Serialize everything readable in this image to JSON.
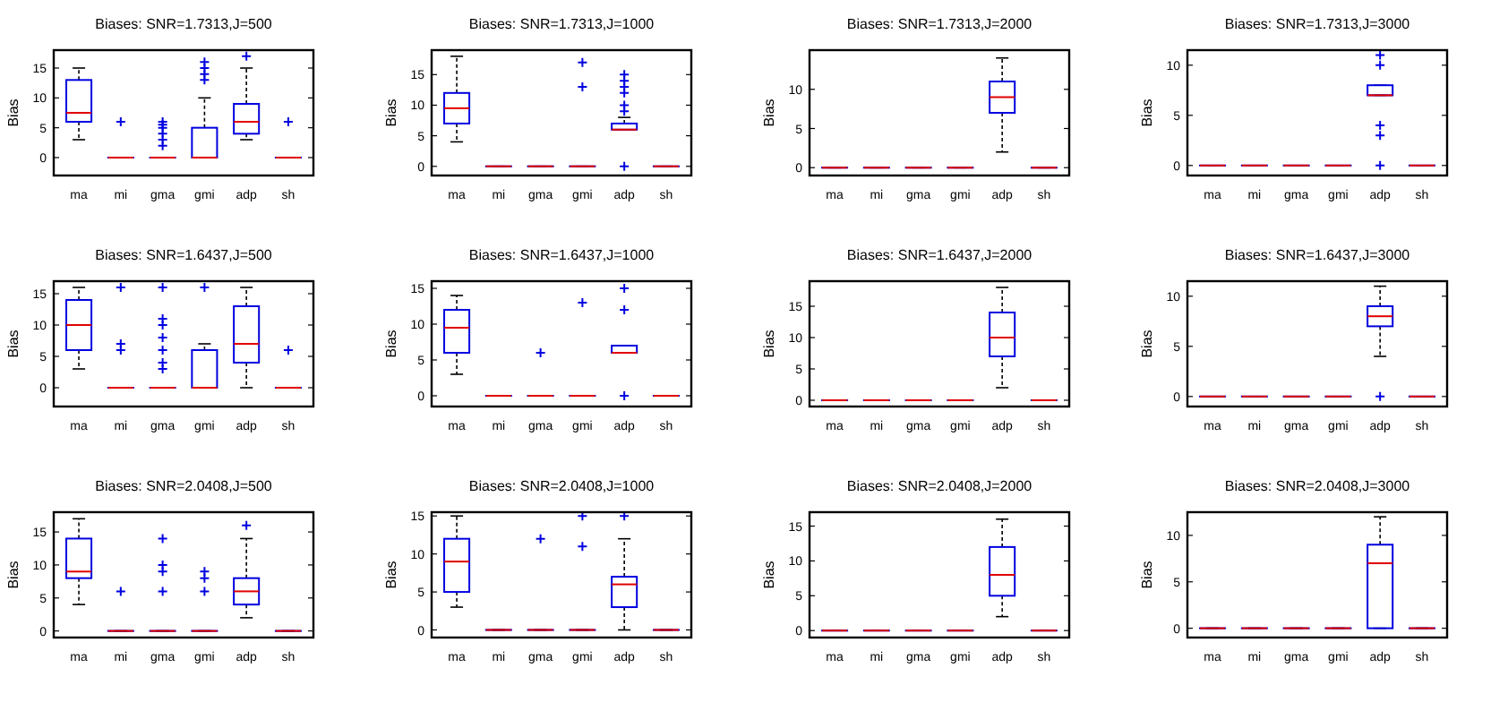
{
  "chart_data": [
    {
      "type": "box",
      "title": "Biases: SNR=1.7313,J=500",
      "ylabel": "Bias",
      "categories": [
        "ma",
        "mi",
        "gma",
        "gmi",
        "adp",
        "sh"
      ],
      "ylim": [
        -3,
        18
      ],
      "yticks": [
        0,
        5,
        10,
        15
      ],
      "boxes": [
        {
          "low": 3,
          "q1": 6,
          "median": 7.5,
          "q3": 13,
          "high": 15
        },
        {
          "low": 0,
          "q1": 0,
          "median": 0,
          "q3": 0,
          "high": 0,
          "outliers": [
            6
          ]
        },
        {
          "low": 0,
          "q1": 0,
          "median": 0,
          "q3": 0,
          "high": 0,
          "outliers": [
            2,
            3,
            4,
            5,
            5.5,
            6
          ]
        },
        {
          "low": 0,
          "q1": 0,
          "median": 0,
          "q3": 5,
          "high": 10,
          "outliers": [
            13,
            14,
            15,
            16
          ]
        },
        {
          "low": 3,
          "q1": 4,
          "median": 6,
          "q3": 9,
          "high": 15,
          "outliers": [
            17
          ]
        },
        {
          "low": 0,
          "q1": 0,
          "median": 0,
          "q3": 0,
          "high": 0,
          "outliers": [
            6
          ]
        }
      ]
    },
    {
      "type": "box",
      "title": "Biases: SNR=1.7313,J=1000",
      "ylabel": "Bias",
      "categories": [
        "ma",
        "mi",
        "gma",
        "gmi",
        "adp",
        "sh"
      ],
      "ylim": [
        -1.5,
        19
      ],
      "yticks": [
        0,
        5,
        10,
        15
      ],
      "boxes": [
        {
          "low": 4,
          "q1": 7,
          "median": 9.5,
          "q3": 12,
          "high": 18
        },
        {
          "low": 0,
          "q1": 0,
          "median": 0,
          "q3": 0,
          "high": 0
        },
        {
          "low": 0,
          "q1": 0,
          "median": 0,
          "q3": 0,
          "high": 0
        },
        {
          "low": 0,
          "q1": 0,
          "median": 0,
          "q3": 0,
          "high": 0,
          "outliers": [
            13,
            17
          ]
        },
        {
          "low": 6,
          "q1": 6,
          "median": 6,
          "q3": 7,
          "high": 8,
          "outliers": [
            0,
            9,
            10,
            12,
            13,
            14,
            15
          ]
        },
        {
          "low": 0,
          "q1": 0,
          "median": 0,
          "q3": 0,
          "high": 0
        }
      ]
    },
    {
      "type": "box",
      "title": "Biases: SNR=1.7313,J=2000",
      "ylabel": "Bias",
      "categories": [
        "ma",
        "mi",
        "gma",
        "gmi",
        "adp",
        "sh"
      ],
      "ylim": [
        -1,
        15
      ],
      "yticks": [
        0,
        5,
        10
      ],
      "boxes": [
        {
          "low": 0,
          "q1": 0,
          "median": 0,
          "q3": 0,
          "high": 0
        },
        {
          "low": 0,
          "q1": 0,
          "median": 0,
          "q3": 0,
          "high": 0
        },
        {
          "low": 0,
          "q1": 0,
          "median": 0,
          "q3": 0,
          "high": 0
        },
        {
          "low": 0,
          "q1": 0,
          "median": 0,
          "q3": 0,
          "high": 0
        },
        {
          "low": 2,
          "q1": 7,
          "median": 9,
          "q3": 11,
          "high": 14
        },
        {
          "low": 0,
          "q1": 0,
          "median": 0,
          "q3": 0,
          "high": 0
        }
      ]
    },
    {
      "type": "box",
      "title": "Biases: SNR=1.7313,J=3000",
      "ylabel": "Bias",
      "categories": [
        "ma",
        "mi",
        "gma",
        "gmi",
        "adp",
        "sh"
      ],
      "ylim": [
        -1,
        11.5
      ],
      "yticks": [
        0,
        5,
        10
      ],
      "boxes": [
        {
          "low": 0,
          "q1": 0,
          "median": 0,
          "q3": 0,
          "high": 0
        },
        {
          "low": 0,
          "q1": 0,
          "median": 0,
          "q3": 0,
          "high": 0
        },
        {
          "low": 0,
          "q1": 0,
          "median": 0,
          "q3": 0,
          "high": 0
        },
        {
          "low": 0,
          "q1": 0,
          "median": 0,
          "q3": 0,
          "high": 0
        },
        {
          "low": 7,
          "q1": 7,
          "median": 7,
          "q3": 8,
          "high": 8,
          "outliers": [
            0,
            3,
            4,
            10,
            11
          ]
        },
        {
          "low": 0,
          "q1": 0,
          "median": 0,
          "q3": 0,
          "high": 0
        }
      ]
    },
    {
      "type": "box",
      "title": "Biases: SNR=1.6437,J=500",
      "ylabel": "Bias",
      "categories": [
        "ma",
        "mi",
        "gma",
        "gmi",
        "adp",
        "sh"
      ],
      "ylim": [
        -3,
        17
      ],
      "yticks": [
        0,
        5,
        10,
        15
      ],
      "boxes": [
        {
          "low": 3,
          "q1": 6,
          "median": 10,
          "q3": 14,
          "high": 16
        },
        {
          "low": 0,
          "q1": 0,
          "median": 0,
          "q3": 0,
          "high": 0,
          "outliers": [
            6,
            7,
            16
          ]
        },
        {
          "low": 0,
          "q1": 0,
          "median": 0,
          "q3": 0,
          "high": 0,
          "outliers": [
            3,
            4,
            6,
            8,
            10,
            11,
            16
          ]
        },
        {
          "low": 0,
          "q1": 0,
          "median": 0,
          "q3": 6,
          "high": 7,
          "outliers": [
            16
          ]
        },
        {
          "low": 0,
          "q1": 4,
          "median": 7,
          "q3": 13,
          "high": 16
        },
        {
          "low": 0,
          "q1": 0,
          "median": 0,
          "q3": 0,
          "high": 0,
          "outliers": [
            6
          ]
        }
      ]
    },
    {
      "type": "box",
      "title": "Biases: SNR=1.6437,J=1000",
      "ylabel": "Bias",
      "categories": [
        "ma",
        "mi",
        "gma",
        "gmi",
        "adp",
        "sh"
      ],
      "ylim": [
        -1.5,
        16
      ],
      "yticks": [
        0,
        5,
        10,
        15
      ],
      "boxes": [
        {
          "low": 3,
          "q1": 6,
          "median": 9.5,
          "q3": 12,
          "high": 14
        },
        {
          "low": 0,
          "q1": 0,
          "median": 0,
          "q3": 0,
          "high": 0
        },
        {
          "low": 0,
          "q1": 0,
          "median": 0,
          "q3": 0,
          "high": 0,
          "outliers": [
            6
          ]
        },
        {
          "low": 0,
          "q1": 0,
          "median": 0,
          "q3": 0,
          "high": 0,
          "outliers": [
            13
          ]
        },
        {
          "low": 6,
          "q1": 6,
          "median": 6,
          "q3": 7,
          "high": 7,
          "outliers": [
            0,
            12,
            15
          ]
        },
        {
          "low": 0,
          "q1": 0,
          "median": 0,
          "q3": 0,
          "high": 0
        }
      ]
    },
    {
      "type": "box",
      "title": "Biases: SNR=1.6437,J=2000",
      "ylabel": "Bias",
      "categories": [
        "ma",
        "mi",
        "gma",
        "gmi",
        "adp",
        "sh"
      ],
      "ylim": [
        -1,
        19
      ],
      "yticks": [
        0,
        5,
        10,
        15
      ],
      "boxes": [
        {
          "low": 0,
          "q1": 0,
          "median": 0,
          "q3": 0,
          "high": 0
        },
        {
          "low": 0,
          "q1": 0,
          "median": 0,
          "q3": 0,
          "high": 0
        },
        {
          "low": 0,
          "q1": 0,
          "median": 0,
          "q3": 0,
          "high": 0
        },
        {
          "low": 0,
          "q1": 0,
          "median": 0,
          "q3": 0,
          "high": 0
        },
        {
          "low": 2,
          "q1": 7,
          "median": 10,
          "q3": 14,
          "high": 18
        },
        {
          "low": 0,
          "q1": 0,
          "median": 0,
          "q3": 0,
          "high": 0
        }
      ]
    },
    {
      "type": "box",
      "title": "Biases: SNR=1.6437,J=3000",
      "ylabel": "Bias",
      "categories": [
        "ma",
        "mi",
        "gma",
        "gmi",
        "adp",
        "sh"
      ],
      "ylim": [
        -1,
        11.5
      ],
      "yticks": [
        0,
        5,
        10
      ],
      "boxes": [
        {
          "low": 0,
          "q1": 0,
          "median": 0,
          "q3": 0,
          "high": 0
        },
        {
          "low": 0,
          "q1": 0,
          "median": 0,
          "q3": 0,
          "high": 0
        },
        {
          "low": 0,
          "q1": 0,
          "median": 0,
          "q3": 0,
          "high": 0
        },
        {
          "low": 0,
          "q1": 0,
          "median": 0,
          "q3": 0,
          "high": 0
        },
        {
          "low": 4,
          "q1": 7,
          "median": 8,
          "q3": 9,
          "high": 11,
          "outliers": [
            0
          ]
        },
        {
          "low": 0,
          "q1": 0,
          "median": 0,
          "q3": 0,
          "high": 0
        }
      ]
    },
    {
      "type": "box",
      "title": "Biases: SNR=2.0408,J=500",
      "ylabel": "Bias",
      "categories": [
        "ma",
        "mi",
        "gma",
        "gmi",
        "adp",
        "sh"
      ],
      "ylim": [
        -1,
        18
      ],
      "yticks": [
        0,
        5,
        10,
        15
      ],
      "boxes": [
        {
          "low": 4,
          "q1": 8,
          "median": 9,
          "q3": 14,
          "high": 17
        },
        {
          "low": 0,
          "q1": 0,
          "median": 0,
          "q3": 0,
          "high": 0,
          "outliers": [
            6
          ]
        },
        {
          "low": 0,
          "q1": 0,
          "median": 0,
          "q3": 0,
          "high": 0,
          "outliers": [
            6,
            9,
            10,
            14
          ]
        },
        {
          "low": 0,
          "q1": 0,
          "median": 0,
          "q3": 0,
          "high": 0,
          "outliers": [
            6,
            8,
            9
          ]
        },
        {
          "low": 2,
          "q1": 4,
          "median": 6,
          "q3": 8,
          "high": 14,
          "outliers": [
            16
          ]
        },
        {
          "low": 0,
          "q1": 0,
          "median": 0,
          "q3": 0,
          "high": 0
        }
      ]
    },
    {
      "type": "box",
      "title": "Biases: SNR=2.0408,J=1000",
      "ylabel": "Bias",
      "categories": [
        "ma",
        "mi",
        "gma",
        "gmi",
        "adp",
        "sh"
      ],
      "ylim": [
        -1,
        15.5
      ],
      "yticks": [
        0,
        5,
        10,
        15
      ],
      "boxes": [
        {
          "low": 3,
          "q1": 5,
          "median": 9,
          "q3": 12,
          "high": 15
        },
        {
          "low": 0,
          "q1": 0,
          "median": 0,
          "q3": 0,
          "high": 0
        },
        {
          "low": 0,
          "q1": 0,
          "median": 0,
          "q3": 0,
          "high": 0,
          "outliers": [
            12
          ]
        },
        {
          "low": 0,
          "q1": 0,
          "median": 0,
          "q3": 0,
          "high": 0,
          "outliers": [
            11,
            15
          ]
        },
        {
          "low": 0,
          "q1": 3,
          "median": 6,
          "q3": 7,
          "high": 12,
          "outliers": [
            15
          ]
        },
        {
          "low": 0,
          "q1": 0,
          "median": 0,
          "q3": 0,
          "high": 0
        }
      ]
    },
    {
      "type": "box",
      "title": "Biases: SNR=2.0408,J=2000",
      "ylabel": "Bias",
      "categories": [
        "ma",
        "mi",
        "gma",
        "gmi",
        "adp",
        "sh"
      ],
      "ylim": [
        -1,
        17
      ],
      "yticks": [
        0,
        5,
        10,
        15
      ],
      "boxes": [
        {
          "low": 0,
          "q1": 0,
          "median": 0,
          "q3": 0,
          "high": 0
        },
        {
          "low": 0,
          "q1": 0,
          "median": 0,
          "q3": 0,
          "high": 0
        },
        {
          "low": 0,
          "q1": 0,
          "median": 0,
          "q3": 0,
          "high": 0
        },
        {
          "low": 0,
          "q1": 0,
          "median": 0,
          "q3": 0,
          "high": 0
        },
        {
          "low": 2,
          "q1": 5,
          "median": 8,
          "q3": 12,
          "high": 16
        },
        {
          "low": 0,
          "q1": 0,
          "median": 0,
          "q3": 0,
          "high": 0
        }
      ]
    },
    {
      "type": "box",
      "title": "Biases: SNR=2.0408,J=3000",
      "ylabel": "Bias",
      "categories": [
        "ma",
        "mi",
        "gma",
        "gmi",
        "adp",
        "sh"
      ],
      "ylim": [
        -1,
        12.5
      ],
      "yticks": [
        0,
        5,
        10
      ],
      "boxes": [
        {
          "low": 0,
          "q1": 0,
          "median": 0,
          "q3": 0,
          "high": 0
        },
        {
          "low": 0,
          "q1": 0,
          "median": 0,
          "q3": 0,
          "high": 0
        },
        {
          "low": 0,
          "q1": 0,
          "median": 0,
          "q3": 0,
          "high": 0
        },
        {
          "low": 0,
          "q1": 0,
          "median": 0,
          "q3": 0,
          "high": 0
        },
        {
          "low": 0,
          "q1": 0,
          "median": 7,
          "q3": 9,
          "high": 12
        },
        {
          "low": 0,
          "q1": 0,
          "median": 0,
          "q3": 0,
          "high": 0
        }
      ]
    }
  ]
}
